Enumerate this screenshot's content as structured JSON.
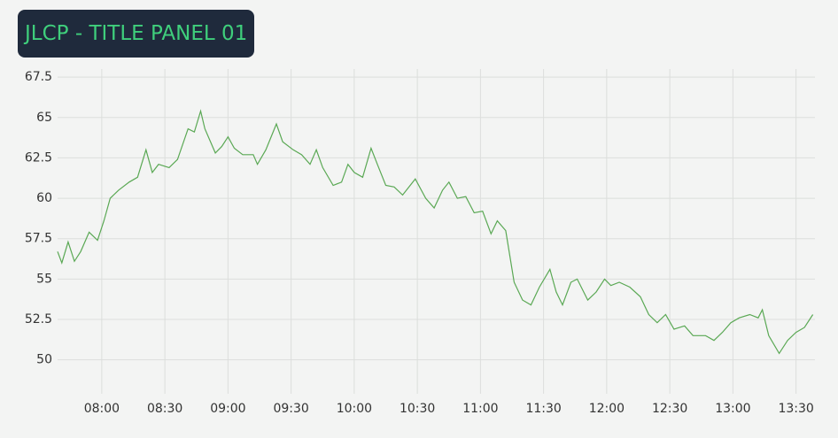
{
  "chart_data": {
    "type": "line",
    "title": "JLCP - TITLE PANEL 01",
    "x": [
      "07:39",
      "07:41",
      "07:44",
      "07:47",
      "07:50",
      "07:54",
      "07:58",
      "08:01",
      "08:04",
      "08:08",
      "08:13",
      "08:17",
      "08:21",
      "08:24",
      "08:27",
      "08:32",
      "08:36",
      "08:41",
      "08:44",
      "08:47",
      "08:49",
      "08:54",
      "08:57",
      "09:00",
      "09:03",
      "09:07",
      "09:12",
      "09:14",
      "09:18",
      "09:23",
      "09:26",
      "09:31",
      "09:35",
      "09:39",
      "09:42",
      "09:45",
      "09:50",
      "09:54",
      "09:57",
      "10:00",
      "10:04",
      "10:08",
      "10:11",
      "10:15",
      "10:19",
      "10:23",
      "10:29",
      "10:34",
      "10:38",
      "10:42",
      "10:45",
      "10:49",
      "10:53",
      "10:57",
      "11:01",
      "11:05",
      "11:08",
      "11:12",
      "11:16",
      "11:20",
      "11:24",
      "11:28",
      "11:33",
      "11:36",
      "11:39",
      "11:43",
      "11:46",
      "11:51",
      "11:55",
      "11:59",
      "12:02",
      "12:06",
      "12:11",
      "12:16",
      "12:20",
      "12:24",
      "12:28",
      "12:32",
      "12:37",
      "12:41",
      "12:47",
      "12:51",
      "12:55",
      "12:59",
      "13:03",
      "13:08",
      "13:12",
      "13:14",
      "13:17",
      "13:22",
      "13:26",
      "13:30",
      "13:34",
      "13:38"
    ],
    "series": [
      {
        "color": "#5aa854",
        "values": [
          56.7,
          56.0,
          57.3,
          56.1,
          56.7,
          57.9,
          57.4,
          58.6,
          60.0,
          60.5,
          61.0,
          61.3,
          63.0,
          61.6,
          62.1,
          61.9,
          62.4,
          64.3,
          64.1,
          65.4,
          64.3,
          62.8,
          63.2,
          63.8,
          63.1,
          62.7,
          62.7,
          62.1,
          63.0,
          64.6,
          63.5,
          63.0,
          62.7,
          62.1,
          63.0,
          61.9,
          60.8,
          61.0,
          62.1,
          61.6,
          61.3,
          63.1,
          62.1,
          60.8,
          60.7,
          60.2,
          61.2,
          60.0,
          59.4,
          60.5,
          61.0,
          60.0,
          60.1,
          59.1,
          59.2,
          57.8,
          58.6,
          58.0,
          54.8,
          53.7,
          53.4,
          54.5,
          55.6,
          54.2,
          53.4,
          54.8,
          55.0,
          53.7,
          54.2,
          55.0,
          54.6,
          54.8,
          54.5,
          53.9,
          52.8,
          52.3,
          52.8,
          51.9,
          52.1,
          51.5,
          51.5,
          51.2,
          51.7,
          52.3,
          52.6,
          52.8,
          52.6,
          53.1,
          51.5,
          50.4,
          51.2,
          51.7,
          52.0,
          52.8
        ]
      }
    ],
    "xlim": [
      "07:39",
      "13:39"
    ],
    "xticks": [
      "08:00",
      "08:30",
      "09:00",
      "09:30",
      "10:00",
      "10:30",
      "11:00",
      "11:30",
      "12:00",
      "12:30",
      "13:00",
      "13:30"
    ],
    "ylim": [
      47.9,
      68
    ],
    "yticks": [
      50,
      52.5,
      55,
      57.5,
      60,
      62.5,
      65,
      67.5
    ],
    "grid": true
  }
}
